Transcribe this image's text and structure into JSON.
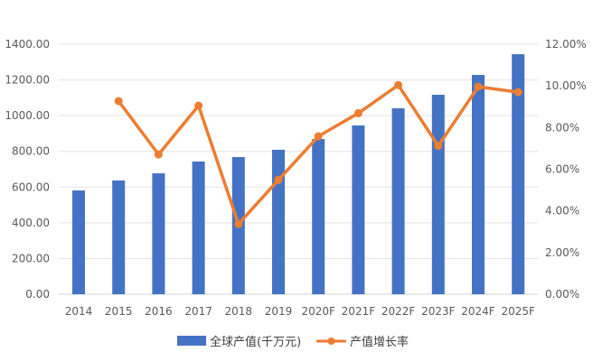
{
  "chart_data": {
    "type": "bar+line",
    "categories": [
      "2014",
      "2015",
      "2016",
      "2017",
      "2018",
      "2019",
      "2020F",
      "2021F",
      "2022F",
      "2023F",
      "2024F",
      "2025F"
    ],
    "series": [
      {
        "name": "全球产值(千万元)",
        "type": "bar",
        "axis": "left",
        "color": "#4472C4",
        "values": [
          581,
          637,
          677,
          743,
          768,
          809,
          869,
          945,
          1041,
          1117,
          1228,
          1344
        ]
      },
      {
        "name": "产值增长率",
        "type": "line",
        "axis": "right",
        "color": "#ED7D31",
        "values": [
          null,
          9.27,
          6.71,
          9.05,
          3.37,
          5.49,
          7.58,
          8.69,
          10.04,
          7.12,
          9.96,
          9.7
        ]
      }
    ],
    "left_axis": {
      "range": [
        0,
        1400
      ],
      "ticks": [
        "0.00",
        "200.00",
        "400.00",
        "600.00",
        "800.00",
        "1000.00",
        "1200.00",
        "1400.00"
      ]
    },
    "right_axis": {
      "range": [
        0,
        12
      ],
      "unit": "%",
      "ticks": [
        "0.00%",
        "2.00%",
        "4.00%",
        "6.00%",
        "8.00%",
        "10.00%",
        "12.00%"
      ]
    },
    "grid": true,
    "legend": "bottom"
  }
}
